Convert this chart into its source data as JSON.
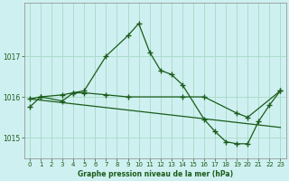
{
  "title": "Graphe pression niveau de la mer (hPa)",
  "background_color": "#cff0f0",
  "grid_color": "#aaddcc",
  "line_color": "#1a5c1a",
  "series1_x": [
    0,
    1,
    3,
    4,
    5,
    7,
    9,
    10,
    11,
    12,
    13,
    14,
    16,
    17,
    18,
    19,
    20,
    21,
    22,
    23
  ],
  "series1_y": [
    1015.75,
    1016.0,
    1015.9,
    1016.1,
    1016.15,
    1017.0,
    1017.5,
    1017.8,
    1017.1,
    1016.65,
    1016.55,
    1016.3,
    1015.45,
    1015.15,
    1014.9,
    1014.85,
    1014.85,
    1015.4,
    1015.8,
    1016.15
  ],
  "series2_x": [
    0,
    1,
    3,
    4,
    5,
    7,
    9,
    14,
    16,
    19,
    20,
    23
  ],
  "series2_y": [
    1015.95,
    1016.0,
    1016.05,
    1016.1,
    1016.1,
    1016.05,
    1016.0,
    1016.0,
    1016.0,
    1015.6,
    1015.5,
    1016.15
  ],
  "series3_x": [
    0,
    23
  ],
  "series3_y": [
    1015.95,
    1015.25
  ],
  "ylim": [
    1014.5,
    1018.3
  ],
  "yticks": [
    1015,
    1016,
    1017
  ],
  "xlim": [
    -0.5,
    23.5
  ],
  "xticks": [
    0,
    1,
    2,
    3,
    4,
    5,
    6,
    7,
    8,
    9,
    10,
    11,
    12,
    13,
    14,
    15,
    16,
    17,
    18,
    19,
    20,
    21,
    22,
    23
  ]
}
